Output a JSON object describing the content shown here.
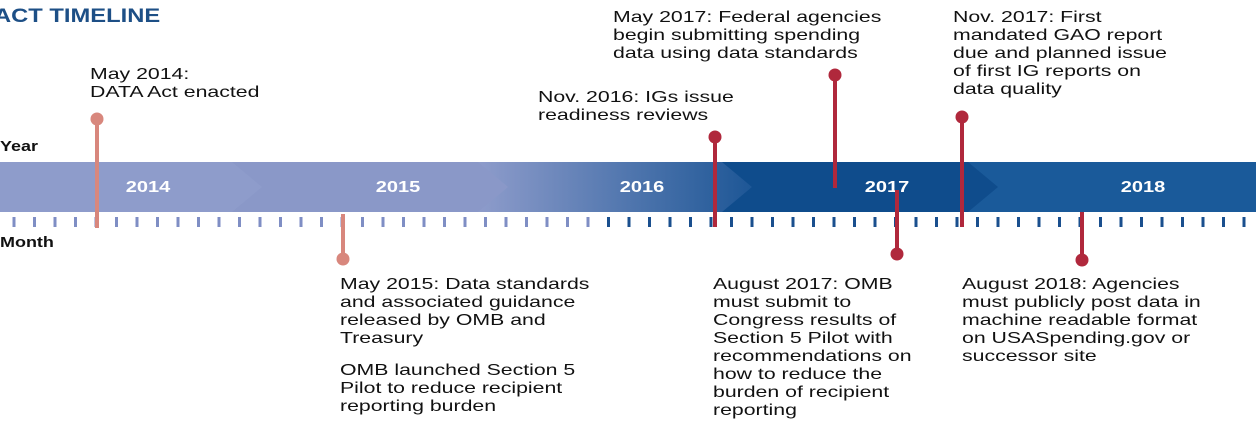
{
  "title": "ACT TIMELINE",
  "row_labels": {
    "year": "Year",
    "month": "Month"
  },
  "years": [
    "2014",
    "2015",
    "2016",
    "2017",
    "2018"
  ],
  "events": [
    {
      "paragraphs": [
        [
          "May 2014:",
          "DATA Act enacted"
        ]
      ]
    },
    {
      "paragraphs": [
        [
          "May 2015: Data standards",
          "and associated guidance",
          "released by OMB and",
          "Treasury"
        ],
        [
          "OMB launched Section 5",
          "Pilot to reduce recipient",
          "reporting burden"
        ]
      ]
    },
    {
      "paragraphs": [
        [
          "Nov. 2016: IGs issue",
          "readiness reviews"
        ]
      ]
    },
    {
      "paragraphs": [
        [
          "May 2017: Federal agencies",
          "begin submitting spending",
          "data using data standards"
        ]
      ]
    },
    {
      "paragraphs": [
        [
          "August 2017: OMB",
          "must submit to",
          "Congress results of",
          "Section 5 Pilot with",
          "recommendations on",
          "how to reduce the",
          "burden of recipient",
          "reporting"
        ]
      ]
    },
    {
      "paragraphs": [
        [
          "Nov. 2017: First",
          "mandated GAO report",
          "due and planned issue",
          "of first IG reports on",
          "data quality"
        ]
      ]
    },
    {
      "paragraphs": [
        [
          "August 2018: Agencies",
          "must publicly post data in",
          "machine readable format",
          "on USASpending.gov or",
          "successor site"
        ]
      ]
    }
  ]
}
